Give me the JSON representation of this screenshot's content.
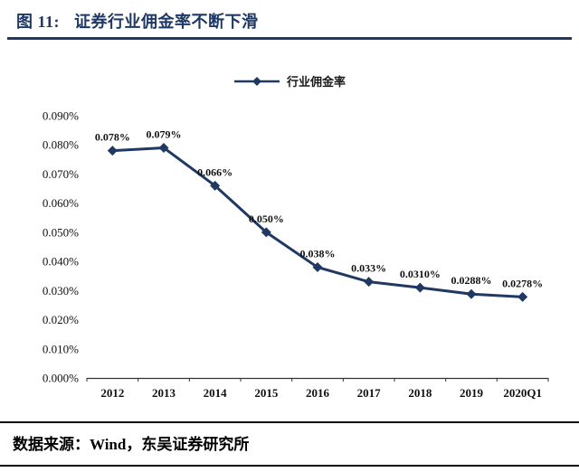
{
  "header": {
    "figure_label": "图 11:",
    "title": "证券行业佣金率不断下滑"
  },
  "footer": {
    "source": "数据来源：Wind，东吴证券研究所"
  },
  "colors": {
    "accent": "#1F3864",
    "line": "#1F3864",
    "axis": "#333333",
    "text": "#111111"
  },
  "chart_data": {
    "type": "line",
    "title": "证券行业佣金率不断下滑",
    "series_name": "行业佣金率",
    "xlabel": "",
    "ylabel": "",
    "legend_position": "top-center",
    "grid": false,
    "categories": [
      "2012",
      "2013",
      "2014",
      "2015",
      "2016",
      "2017",
      "2018",
      "2019",
      "2020Q1"
    ],
    "values": [
      0.078,
      0.079,
      0.066,
      0.05,
      0.038,
      0.033,
      0.031,
      0.0288,
      0.0278
    ],
    "labels": [
      "0.078%",
      "0.079%",
      "0.066%",
      "0.050%",
      "0.038%",
      "0.033%",
      "0.0310%",
      "0.0288%",
      "0.0278%"
    ],
    "ylim": [
      0.0,
      0.09
    ],
    "yticks": [
      {
        "value": 0.0,
        "label": "0.000%"
      },
      {
        "value": 0.01,
        "label": "0.010%"
      },
      {
        "value": 0.02,
        "label": "0.020%"
      },
      {
        "value": 0.03,
        "label": "0.030%"
      },
      {
        "value": 0.04,
        "label": "0.040%"
      },
      {
        "value": 0.05,
        "label": "0.050%"
      },
      {
        "value": 0.06,
        "label": "0.060%"
      },
      {
        "value": 0.07,
        "label": "0.070%"
      },
      {
        "value": 0.08,
        "label": "0.080%"
      },
      {
        "value": 0.09,
        "label": "0.090%"
      }
    ]
  }
}
